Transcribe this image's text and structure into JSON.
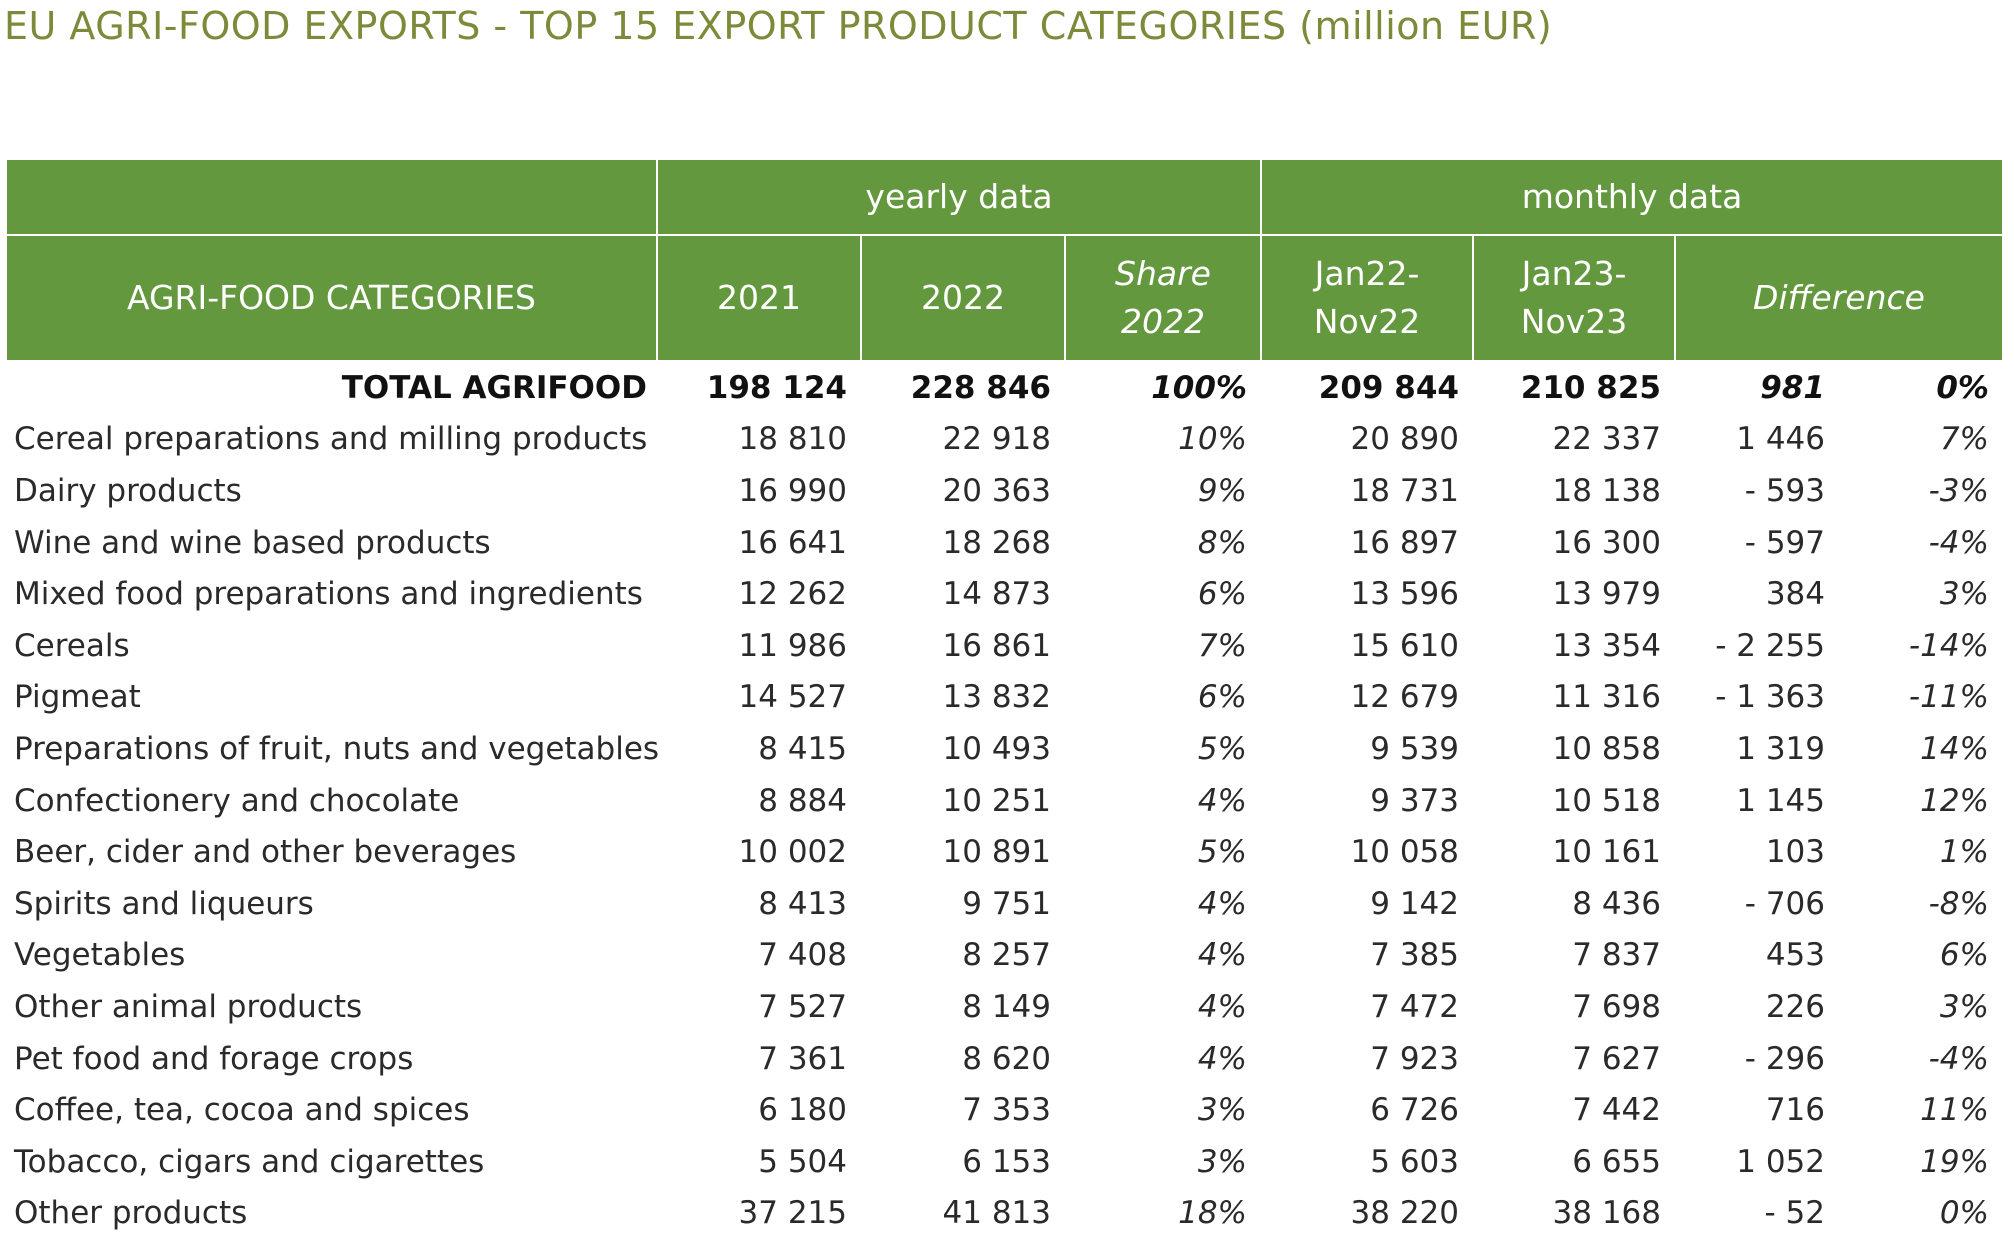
{
  "page": {
    "title": "EU AGRI-FOOD EXPORTS - TOP 15 EXPORT PRODUCT CATEGORIES (million EUR)"
  },
  "colors": {
    "header_bg": "#64983f",
    "title_text": "#7d8a3a"
  },
  "chart_data": {
    "type": "table",
    "title": "EU AGRI-FOOD EXPORTS - TOP 15 EXPORT PRODUCT CATEGORIES (million EUR)",
    "group_headers": [
      "yearly data",
      "monthly data"
    ],
    "columns": [
      "AGRI-FOOD CATEGORIES",
      "2021",
      "2022",
      "Share 2022",
      "Jan22-Nov22",
      "Jan23-Nov23",
      "Difference"
    ],
    "column_lines": [
      [
        "AGRI-FOOD CATEGORIES"
      ],
      [
        "2021"
      ],
      [
        "2022"
      ],
      [
        "Share",
        "2022"
      ],
      [
        "Jan22-",
        "Nov22"
      ],
      [
        "Jan23-",
        "Nov23"
      ],
      [
        "Difference"
      ]
    ],
    "total": {
      "category": "TOTAL AGRIFOOD",
      "y2021": "198 124",
      "y2022": "228 846",
      "share2022": "100%",
      "m2022": "209 844",
      "m2023": "210 825",
      "diff": "981",
      "diff_pct": "0%"
    },
    "rows": [
      {
        "category": "Cereal preparations and milling products",
        "y2021": "18 810",
        "y2022": "22 918",
        "share2022": "10%",
        "m2022": "20 890",
        "m2023": "22 337",
        "diff": "1 446",
        "diff_pct": "7%"
      },
      {
        "category": "Dairy products",
        "y2021": "16 990",
        "y2022": "20 363",
        "share2022": "9%",
        "m2022": "18 731",
        "m2023": "18 138",
        "diff": "-  593",
        "diff_pct": "-3%"
      },
      {
        "category": "Wine and wine based products",
        "y2021": "16 641",
        "y2022": "18 268",
        "share2022": "8%",
        "m2022": "16 897",
        "m2023": "16 300",
        "diff": "-  597",
        "diff_pct": "-4%"
      },
      {
        "category": "Mixed food preparations and ingredients",
        "y2021": "12 262",
        "y2022": "14 873",
        "share2022": "6%",
        "m2022": "13 596",
        "m2023": "13 979",
        "diff": "384",
        "diff_pct": "3%"
      },
      {
        "category": "Cereals",
        "y2021": "11 986",
        "y2022": "16 861",
        "share2022": "7%",
        "m2022": "15 610",
        "m2023": "13 354",
        "diff": "- 2 255",
        "diff_pct": "-14%"
      },
      {
        "category": "Pigmeat",
        "y2021": "14 527",
        "y2022": "13 832",
        "share2022": "6%",
        "m2022": "12 679",
        "m2023": "11 316",
        "diff": "- 1 363",
        "diff_pct": "-11%"
      },
      {
        "category": "Preparations of fruit, nuts and vegetables",
        "y2021": "8 415",
        "y2022": "10 493",
        "share2022": "5%",
        "m2022": "9 539",
        "m2023": "10 858",
        "diff": "1 319",
        "diff_pct": "14%"
      },
      {
        "category": "Confectionery and chocolate",
        "y2021": "8 884",
        "y2022": "10 251",
        "share2022": "4%",
        "m2022": "9 373",
        "m2023": "10 518",
        "diff": "1 145",
        "diff_pct": "12%"
      },
      {
        "category": "Beer, cider and other beverages",
        "y2021": "10 002",
        "y2022": "10 891",
        "share2022": "5%",
        "m2022": "10 058",
        "m2023": "10 161",
        "diff": "103",
        "diff_pct": "1%"
      },
      {
        "category": "Spirits and liqueurs",
        "y2021": "8 413",
        "y2022": "9 751",
        "share2022": "4%",
        "m2022": "9 142",
        "m2023": "8 436",
        "diff": "-  706",
        "diff_pct": "-8%"
      },
      {
        "category": "Vegetables",
        "y2021": "7 408",
        "y2022": "8 257",
        "share2022": "4%",
        "m2022": "7 385",
        "m2023": "7 837",
        "diff": "453",
        "diff_pct": "6%"
      },
      {
        "category": "Other animal products",
        "y2021": "7 527",
        "y2022": "8 149",
        "share2022": "4%",
        "m2022": "7 472",
        "m2023": "7 698",
        "diff": "226",
        "diff_pct": "3%"
      },
      {
        "category": "Pet food and forage crops",
        "y2021": "7 361",
        "y2022": "8 620",
        "share2022": "4%",
        "m2022": "7 923",
        "m2023": "7 627",
        "diff": "-  296",
        "diff_pct": "-4%"
      },
      {
        "category": "Coffee, tea, cocoa and spices",
        "y2021": "6 180",
        "y2022": "7 353",
        "share2022": "3%",
        "m2022": "6 726",
        "m2023": "7 442",
        "diff": "716",
        "diff_pct": "11%"
      },
      {
        "category": "Tobacco, cigars and cigarettes",
        "y2021": "5 504",
        "y2022": "6 153",
        "share2022": "3%",
        "m2022": "5 603",
        "m2023": "6 655",
        "diff": "1 052",
        "diff_pct": "19%"
      },
      {
        "category": "Other products",
        "y2021": "37 215",
        "y2022": "41 813",
        "share2022": "18%",
        "m2022": "38 220",
        "m2023": "38 168",
        "diff": "-  52",
        "diff_pct": "0%"
      }
    ]
  }
}
